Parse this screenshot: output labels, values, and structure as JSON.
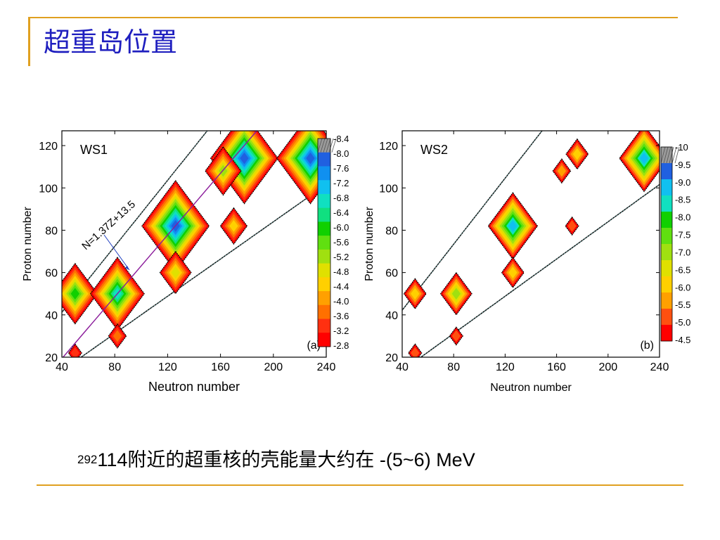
{
  "colors": {
    "accent_rule": "#e0a020",
    "title": "#1f1fbf",
    "text": "#000000"
  },
  "slide": {
    "title": "超重岛位置",
    "caption": {
      "superscript": "292",
      "text": "114附近的超重核的壳能量大约在 -(5~6) MeV"
    }
  },
  "chart_data": [
    {
      "type": "heatmap",
      "panel_label": "(a)",
      "model": "WS1",
      "xlabel": "Neutron number",
      "ylabel": "Proton number",
      "xlim": [
        40,
        240
      ],
      "ylim": [
        20,
        127
      ],
      "xticks": [
        "40",
        "80",
        "120",
        "160",
        "200",
        "240"
      ],
      "yticks": [
        "20",
        "40",
        "60",
        "80",
        "100",
        "120"
      ],
      "annotation": "N=1.37Z+13.5",
      "line": {
        "slope": 1.37,
        "intercept": 13.5,
        "color": "#8a1a9a"
      },
      "colorbar": {
        "labels": [
          "-8.4",
          "-8.0",
          "-7.6",
          "-7.2",
          "-6.8",
          "-6.4",
          "-6.0",
          "-5.6",
          "-5.2",
          "-4.8",
          "-4.4",
          "-4.0",
          "-3.6",
          "-3.2",
          "-2.8"
        ],
        "colors": [
          "#9a9a9a",
          "#2060e0",
          "#1090f0",
          "#10c0f0",
          "#10e0c0",
          "#10e080",
          "#10d000",
          "#60e010",
          "#a0e010",
          "#e0e000",
          "#ffd000",
          "#ffa000",
          "#ff7000",
          "#ff3010",
          "#ff0000"
        ]
      },
      "islands": [
        {
          "n": 50,
          "z": 50,
          "value": -6.0
        },
        {
          "n": 82,
          "z": 50,
          "value": -6.8
        },
        {
          "n": 126,
          "z": 82,
          "value": -8.0
        },
        {
          "n": 178,
          "z": 114,
          "value": -8.0
        },
        {
          "n": 228,
          "z": 114,
          "value": -8.0
        },
        {
          "n": 162,
          "z": 108,
          "value": -5.2
        },
        {
          "n": 170,
          "z": 82,
          "value": -4.4
        },
        {
          "n": 126,
          "z": 60,
          "value": -4.8
        },
        {
          "n": 82,
          "z": 30,
          "value": -3.6
        },
        {
          "n": 50,
          "z": 22,
          "value": -3.2
        }
      ]
    },
    {
      "type": "heatmap",
      "panel_label": "(b)",
      "model": "WS2",
      "xlabel": "Neutron number",
      "ylabel": "Proton number",
      "xlim": [
        40,
        240
      ],
      "ylim": [
        20,
        127
      ],
      "xticks": [
        "40",
        "80",
        "120",
        "160",
        "200",
        "240"
      ],
      "yticks": [
        "20",
        "40",
        "60",
        "80",
        "100",
        "120"
      ],
      "colorbar": {
        "labels": [
          "-10",
          "-9.5",
          "-9.0",
          "-8.5",
          "-8.0",
          "-7.5",
          "-7.0",
          "-6.5",
          "-6.0",
          "-5.5",
          "-5.0",
          "-4.5"
        ],
        "colors": [
          "#9a9a9a",
          "#2060e0",
          "#10c0f0",
          "#10e0c0",
          "#10d000",
          "#60e010",
          "#a0e010",
          "#e0e000",
          "#ffd000",
          "#ffa000",
          "#ff5010",
          "#ff0000"
        ]
      },
      "islands": [
        {
          "n": 50,
          "z": 50,
          "value": -6.0
        },
        {
          "n": 82,
          "z": 50,
          "value": -7.0
        },
        {
          "n": 126,
          "z": 82,
          "value": -9.0
        },
        {
          "n": 176,
          "z": 116,
          "value": -6.0
        },
        {
          "n": 228,
          "z": 114,
          "value": -9.0
        },
        {
          "n": 164,
          "z": 108,
          "value": -5.5
        },
        {
          "n": 172,
          "z": 82,
          "value": -5.0
        },
        {
          "n": 126,
          "z": 60,
          "value": -6.0
        },
        {
          "n": 82,
          "z": 30,
          "value": -5.0
        },
        {
          "n": 50,
          "z": 22,
          "value": -5.0
        }
      ]
    }
  ]
}
